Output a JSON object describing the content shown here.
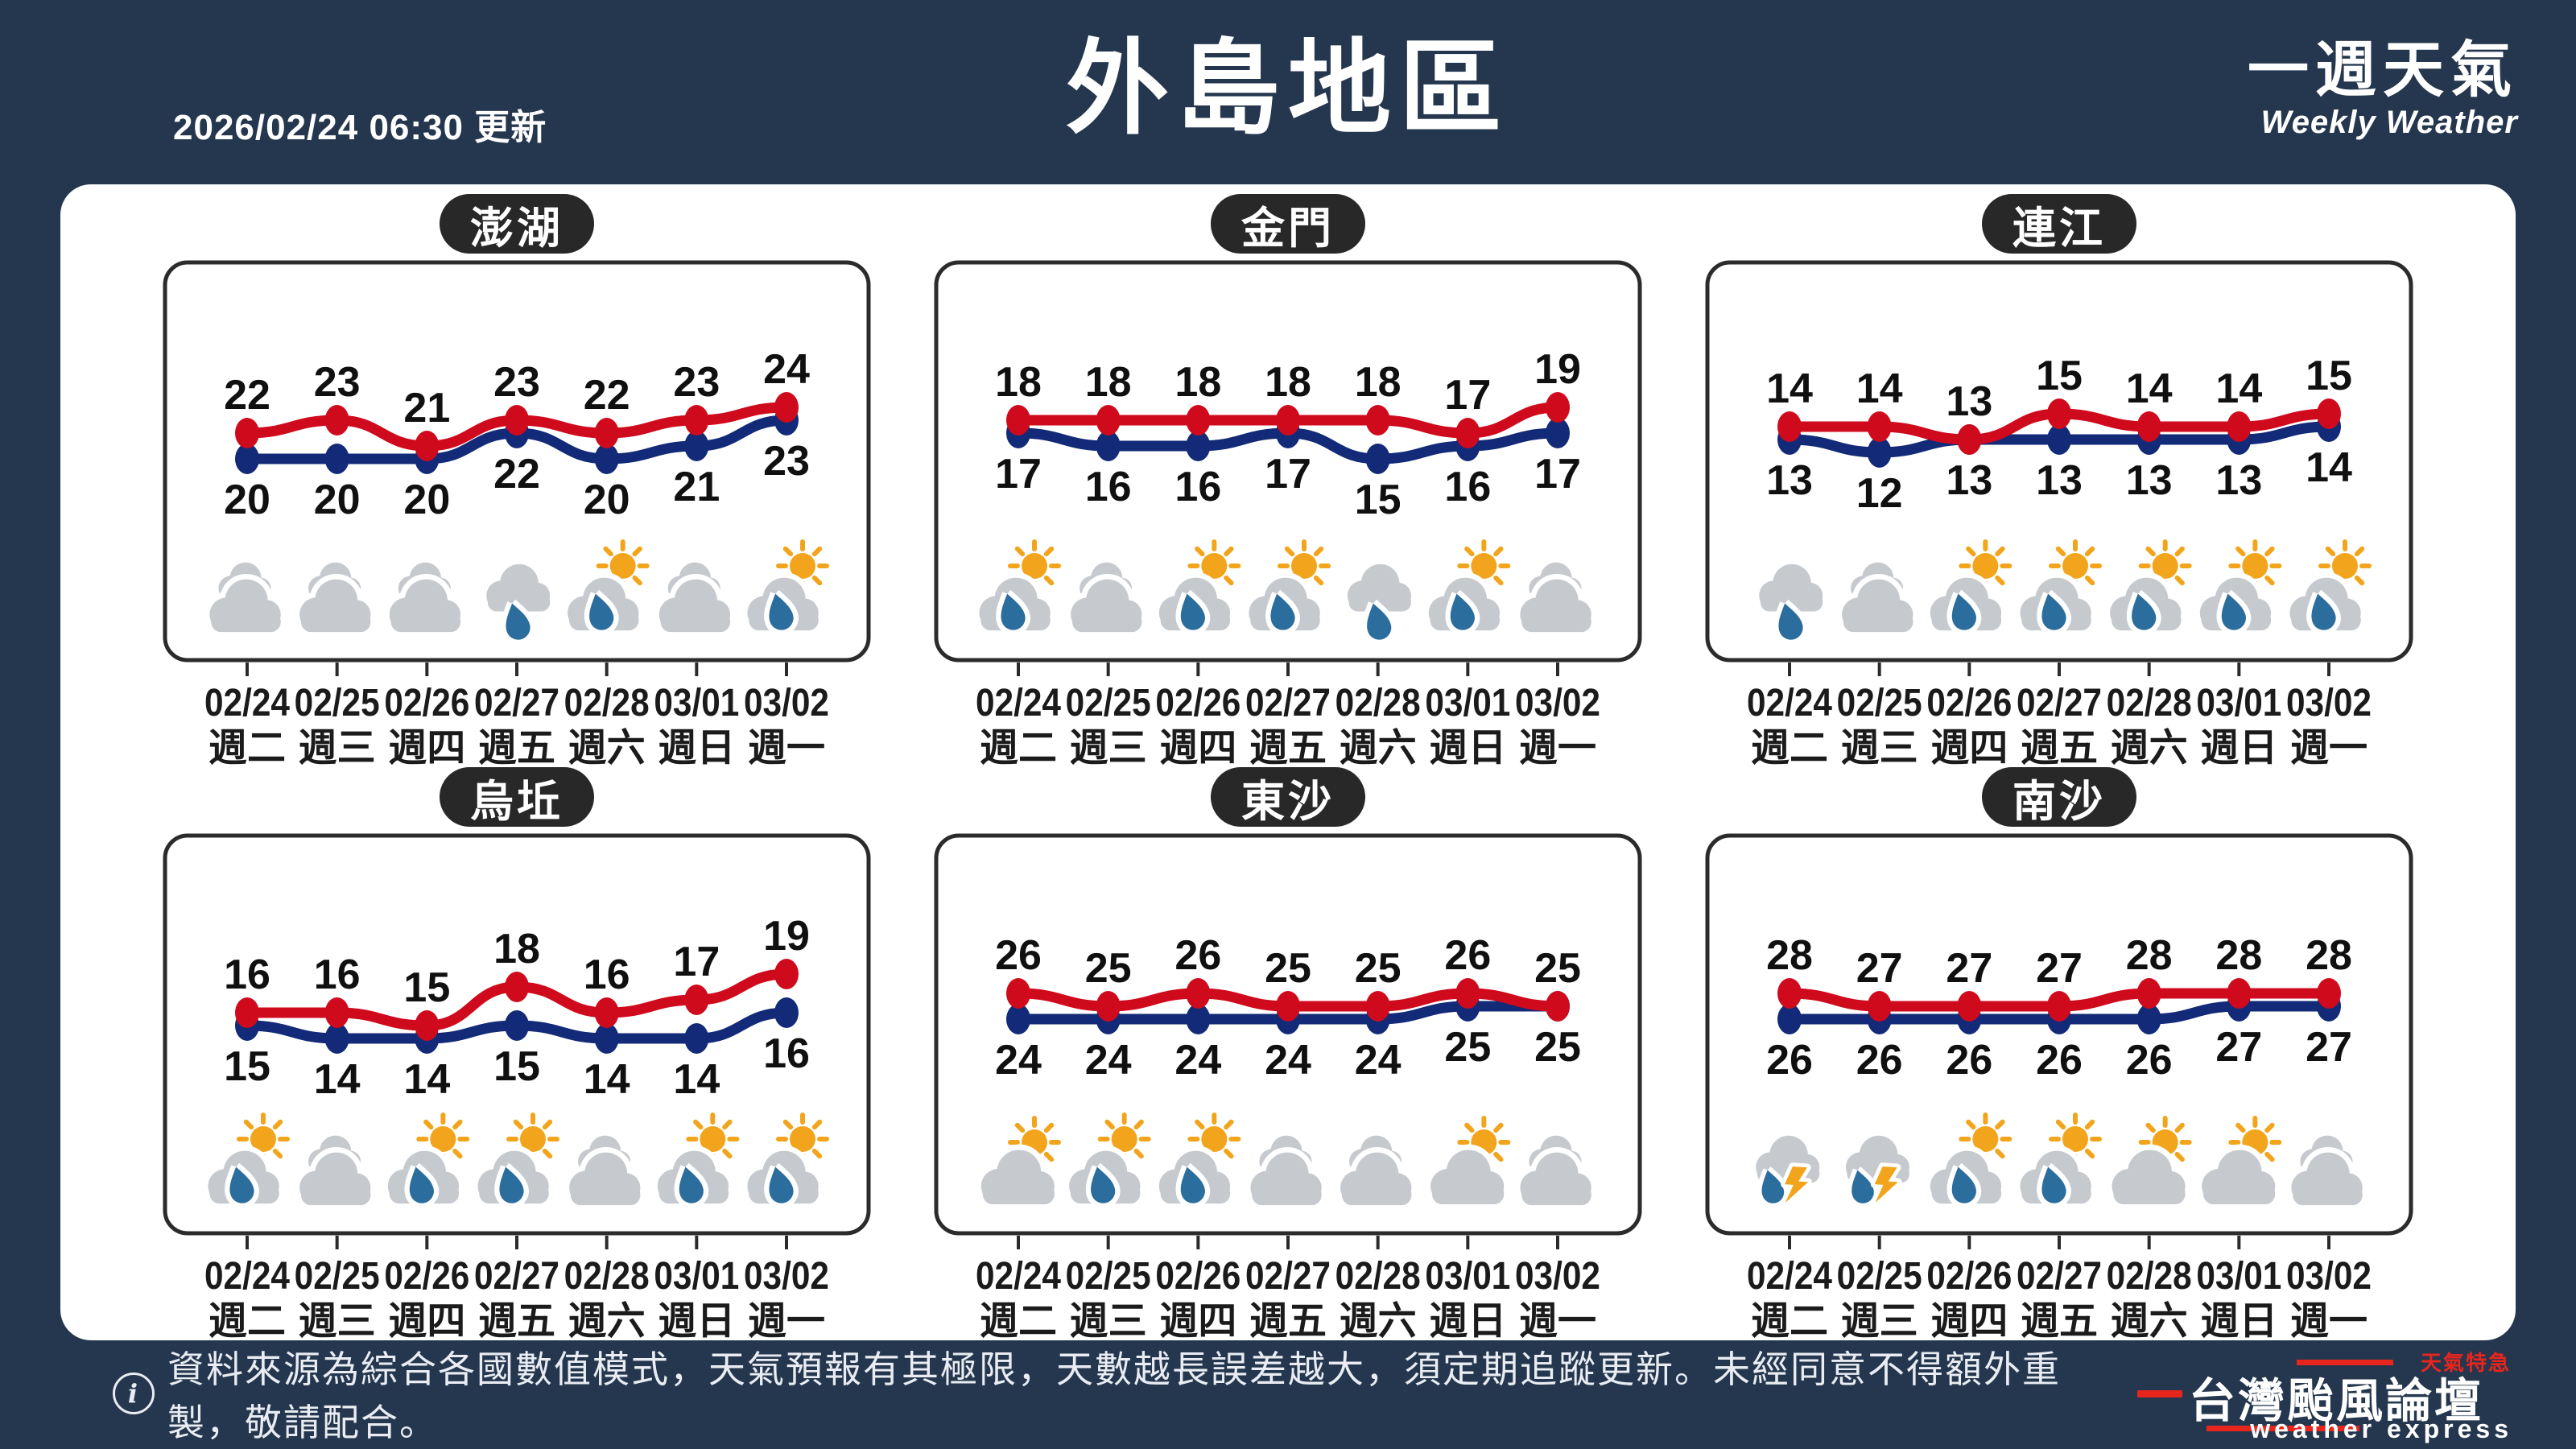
{
  "header": {
    "updated": "2026/02/24 06:30 更新",
    "title": "外島地區",
    "subtitle_zh": "一週天氣",
    "subtitle_en": "Weekly Weather"
  },
  "week": {
    "dates": [
      "02/24",
      "02/25",
      "02/26",
      "02/27",
      "02/28",
      "03/01",
      "03/02"
    ],
    "weekdays": [
      "週二",
      "週三",
      "週四",
      "週五",
      "週六",
      "週日",
      "週一"
    ]
  },
  "chart_data": [
    {
      "type": "line",
      "id": "penghu",
      "title": "澎湖",
      "categories": [
        "02/24 週二",
        "02/25 週三",
        "02/26 週四",
        "02/27 週五",
        "02/28 週六",
        "03/01 週日",
        "03/02 週一"
      ],
      "series": [
        {
          "name": "high-temp",
          "color": "#d00a1d",
          "values": [
            22,
            23,
            21,
            23,
            22,
            23,
            24
          ]
        },
        {
          "name": "low-temp",
          "color": "#122a77",
          "values": [
            20,
            20,
            20,
            22,
            20,
            21,
            23
          ]
        }
      ],
      "icons": [
        "cloudy",
        "cloudy",
        "cloudy",
        "cloud-rain",
        "sun-cloud-rain",
        "cloudy",
        "sun-cloud-rain"
      ]
    },
    {
      "type": "line",
      "id": "kinmen",
      "title": "金門",
      "categories": [
        "02/24 週二",
        "02/25 週三",
        "02/26 週四",
        "02/27 週五",
        "02/28 週六",
        "03/01 週日",
        "03/02 週一"
      ],
      "series": [
        {
          "name": "high-temp",
          "color": "#d00a1d",
          "values": [
            18,
            18,
            18,
            18,
            18,
            17,
            19
          ]
        },
        {
          "name": "low-temp",
          "color": "#122a77",
          "values": [
            17,
            16,
            16,
            17,
            15,
            16,
            17
          ]
        }
      ],
      "icons": [
        "sun-cloud-rain",
        "cloudy",
        "sun-cloud-rain",
        "sun-cloud-rain",
        "cloud-rain",
        "sun-cloud-rain",
        "cloudy"
      ]
    },
    {
      "type": "line",
      "id": "lienchiang",
      "title": "連江",
      "categories": [
        "02/24 週二",
        "02/25 週三",
        "02/26 週四",
        "02/27 週五",
        "02/28 週六",
        "03/01 週日",
        "03/02 週一"
      ],
      "series": [
        {
          "name": "high-temp",
          "color": "#d00a1d",
          "values": [
            14,
            14,
            13,
            15,
            14,
            14,
            15
          ]
        },
        {
          "name": "low-temp",
          "color": "#122a77",
          "values": [
            13,
            12,
            13,
            13,
            13,
            13,
            14
          ]
        }
      ],
      "icons": [
        "cloud-rain",
        "cloudy",
        "sun-cloud-rain",
        "sun-cloud-rain",
        "sun-cloud-rain",
        "sun-cloud-rain",
        "sun-cloud-rain"
      ]
    },
    {
      "type": "line",
      "id": "wuqiu",
      "title": "烏坵",
      "categories": [
        "02/24 週二",
        "02/25 週三",
        "02/26 週四",
        "02/27 週五",
        "02/28 週六",
        "03/01 週日",
        "03/02 週一"
      ],
      "series": [
        {
          "name": "high-temp",
          "color": "#d00a1d",
          "values": [
            16,
            16,
            15,
            18,
            16,
            17,
            19
          ]
        },
        {
          "name": "low-temp",
          "color": "#122a77",
          "values": [
            15,
            14,
            14,
            15,
            14,
            14,
            16
          ]
        }
      ],
      "icons": [
        "sun-cloud-rain",
        "cloudy",
        "sun-cloud-rain",
        "sun-cloud-rain",
        "cloudy",
        "sun-cloud-rain",
        "sun-cloud-rain"
      ]
    },
    {
      "type": "line",
      "id": "dongsha",
      "title": "東沙",
      "categories": [
        "02/24 週二",
        "02/25 週三",
        "02/26 週四",
        "02/27 週五",
        "02/28 週六",
        "03/01 週日",
        "03/02 週一"
      ],
      "series": [
        {
          "name": "high-temp",
          "color": "#d00a1d",
          "values": [
            26,
            25,
            26,
            25,
            25,
            26,
            25
          ]
        },
        {
          "name": "low-temp",
          "color": "#122a77",
          "values": [
            24,
            24,
            24,
            24,
            24,
            25,
            25
          ]
        }
      ],
      "icons": [
        "sun-cloud",
        "sun-cloud-rain",
        "sun-cloud-rain",
        "cloudy",
        "cloudy",
        "sun-cloud",
        "cloudy"
      ]
    },
    {
      "type": "line",
      "id": "nansha",
      "title": "南沙",
      "categories": [
        "02/24 週二",
        "02/25 週三",
        "02/26 週四",
        "02/27 週五",
        "02/28 週六",
        "03/01 週日",
        "03/02 週一"
      ],
      "series": [
        {
          "name": "high-temp",
          "color": "#d00a1d",
          "values": [
            28,
            27,
            27,
            27,
            28,
            28,
            28
          ]
        },
        {
          "name": "low-temp",
          "color": "#122a77",
          "values": [
            26,
            26,
            26,
            26,
            26,
            27,
            27
          ]
        }
      ],
      "icons": [
        "thunder-rain",
        "thunder-rain",
        "sun-cloud-rain",
        "sun-cloud-rain",
        "sun-cloud",
        "sun-cloud",
        "cloudy"
      ]
    }
  ],
  "footer": {
    "info_glyph": "i",
    "note": "資料來源為綜合各國數值模式，天氣預報有其極限，天數越長誤差越大，須定期追蹤更新。未經同意不得額外重製，敬請配合。",
    "brand_zh": "台灣颱風論壇",
    "brand_en": "weather express",
    "brand_tag": "天氣特急"
  },
  "colors": {
    "background": "#25374e",
    "board": "#ffffff",
    "panel_border": "#2b2b2b",
    "badge_bg": "#282828",
    "high_line": "#d00a1d",
    "low_line": "#122a77",
    "value_label": "#101010",
    "date_label": "#1b1b1b",
    "cloud": "#c6c9ce",
    "sun": "#f2a51c",
    "rain_drop": "#2b6d9d",
    "lightning": "#f2a51c",
    "footer_text": "#e9edf3",
    "footer_red": "#e8251d"
  }
}
